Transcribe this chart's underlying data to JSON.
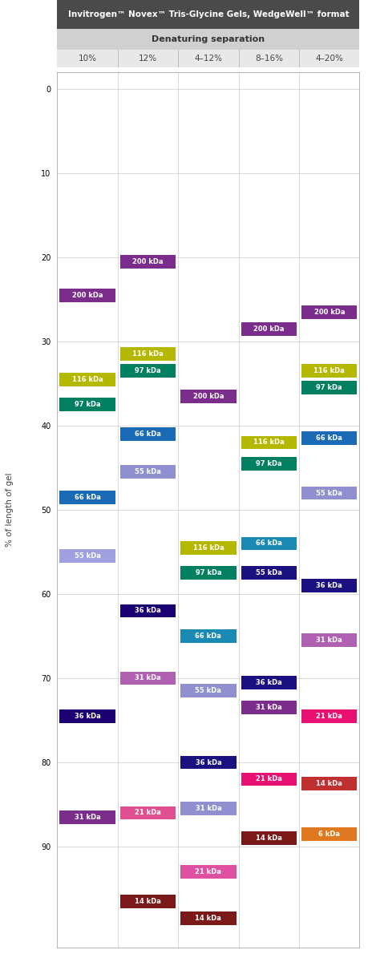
{
  "title": "Invitrogen™ Novex™ Tris-Glycine Gels, WedgeWell™ format",
  "subtitle": "Denaturing separation",
  "columns": [
    "10%",
    "12%",
    "4–12%",
    "8–16%",
    "4–20%"
  ],
  "ylabel": "% of length of gel",
  "yticks": [
    0,
    10,
    20,
    30,
    40,
    50,
    60,
    70,
    80,
    90
  ],
  "title_bg": "#4a4a4a",
  "subtitle_bg": "#d0d0d0",
  "col_header_bg": "#e8e8e8",
  "grid_color": "#cccccc",
  "plot_bg": "#ffffff",
  "bands": [
    {
      "col": 0,
      "y": 24.5,
      "label": "200 kDa",
      "color": "#7b2d8b"
    },
    {
      "col": 0,
      "y": 34.5,
      "label": "116 kDa",
      "color": "#b5b800"
    },
    {
      "col": 0,
      "y": 37.5,
      "label": "97 kDa",
      "color": "#008060"
    },
    {
      "col": 0,
      "y": 48.5,
      "label": "66 kDa",
      "color": "#1a6ab5"
    },
    {
      "col": 0,
      "y": 55.5,
      "label": "55 kDa",
      "color": "#a0a0e0"
    },
    {
      "col": 0,
      "y": 74.5,
      "label": "36 kDa",
      "color": "#1a0070"
    },
    {
      "col": 0,
      "y": 86.5,
      "label": "31 kDa",
      "color": "#7b2d8b"
    },
    {
      "col": 1,
      "y": 20.5,
      "label": "200 kDa",
      "color": "#7b2d8b"
    },
    {
      "col": 1,
      "y": 31.5,
      "label": "116 kDa",
      "color": "#b5b800"
    },
    {
      "col": 1,
      "y": 33.5,
      "label": "97 kDa",
      "color": "#008060"
    },
    {
      "col": 1,
      "y": 41.0,
      "label": "66 kDa",
      "color": "#1a6ab5"
    },
    {
      "col": 1,
      "y": 45.5,
      "label": "55 kDa",
      "color": "#9090d0"
    },
    {
      "col": 1,
      "y": 62.0,
      "label": "36 kDa",
      "color": "#1a0070"
    },
    {
      "col": 1,
      "y": 70.0,
      "label": "31 kDa",
      "color": "#b060b0"
    },
    {
      "col": 1,
      "y": 86.0,
      "label": "21 kDa",
      "color": "#e05090"
    },
    {
      "col": 1,
      "y": 96.5,
      "label": "14 kDa",
      "color": "#7b1818"
    },
    {
      "col": 2,
      "y": 36.5,
      "label": "200 kDa",
      "color": "#7b2d8b"
    },
    {
      "col": 2,
      "y": 54.5,
      "label": "116 kDa",
      "color": "#b5b800"
    },
    {
      "col": 2,
      "y": 57.5,
      "label": "97 kDa",
      "color": "#008060"
    },
    {
      "col": 2,
      "y": 65.0,
      "label": "66 kDa",
      "color": "#1a8ab5"
    },
    {
      "col": 2,
      "y": 71.5,
      "label": "55 kDa",
      "color": "#9090d0"
    },
    {
      "col": 2,
      "y": 80.0,
      "label": "36 kDa",
      "color": "#1a1080"
    },
    {
      "col": 2,
      "y": 85.5,
      "label": "31 kDa",
      "color": "#9090d0"
    },
    {
      "col": 2,
      "y": 93.0,
      "label": "21 kDa",
      "color": "#e050a0"
    },
    {
      "col": 2,
      "y": 98.5,
      "label": "14 kDa",
      "color": "#7b1818"
    },
    {
      "col": 3,
      "y": 28.5,
      "label": "200 kDa",
      "color": "#7b2d8b"
    },
    {
      "col": 3,
      "y": 42.0,
      "label": "116 kDa",
      "color": "#b5b800"
    },
    {
      "col": 3,
      "y": 44.5,
      "label": "97 kDa",
      "color": "#008060"
    },
    {
      "col": 3,
      "y": 54.0,
      "label": "66 kDa",
      "color": "#1a8ab5"
    },
    {
      "col": 3,
      "y": 57.5,
      "label": "55 kDa",
      "color": "#1a1080"
    },
    {
      "col": 3,
      "y": 70.5,
      "label": "36 kDa",
      "color": "#1a1080"
    },
    {
      "col": 3,
      "y": 73.5,
      "label": "31 kDa",
      "color": "#7b2d8b"
    },
    {
      "col": 3,
      "y": 82.0,
      "label": "21 kDa",
      "color": "#e81070"
    },
    {
      "col": 3,
      "y": 89.0,
      "label": "14 kDa",
      "color": "#7b1818"
    },
    {
      "col": 4,
      "y": 26.5,
      "label": "200 kDa",
      "color": "#7b2d8b"
    },
    {
      "col": 4,
      "y": 33.5,
      "label": "116 kDa",
      "color": "#b5b800"
    },
    {
      "col": 4,
      "y": 35.5,
      "label": "97 kDa",
      "color": "#008060"
    },
    {
      "col": 4,
      "y": 41.5,
      "label": "66 kDa",
      "color": "#1a6ab5"
    },
    {
      "col": 4,
      "y": 48.0,
      "label": "55 kDa",
      "color": "#9090d0"
    },
    {
      "col": 4,
      "y": 59.0,
      "label": "36 kDa",
      "color": "#1a1080"
    },
    {
      "col": 4,
      "y": 65.5,
      "label": "31 kDa",
      "color": "#b060b0"
    },
    {
      "col": 4,
      "y": 74.5,
      "label": "21 kDa",
      "color": "#e81070"
    },
    {
      "col": 4,
      "y": 82.5,
      "label": "14 kDa",
      "color": "#c03030"
    },
    {
      "col": 4,
      "y": 88.5,
      "label": "6 kDa",
      "color": "#e07820"
    }
  ]
}
